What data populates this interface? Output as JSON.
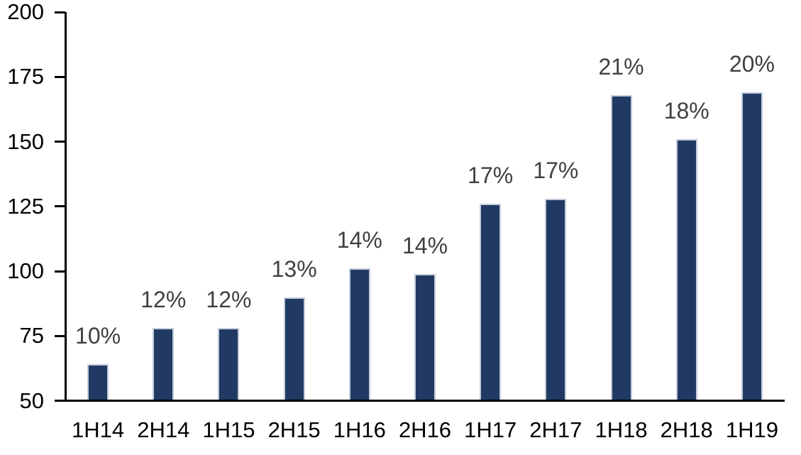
{
  "chart_data": {
    "type": "bar",
    "title": "",
    "xlabel": "",
    "ylabel": "",
    "categories": [
      "1H14",
      "2H14",
      "1H15",
      "2H15",
      "1H16",
      "2H16",
      "1H17",
      "2H17",
      "1H18",
      "2H18",
      "1H19"
    ],
    "values": [
      64,
      78,
      78,
      90,
      101,
      99,
      126,
      128,
      168,
      151,
      169
    ],
    "bar_labels": [
      "10%",
      "12%",
      "12%",
      "13%",
      "14%",
      "14%",
      "17%",
      "17%",
      "21%",
      "18%",
      "20%"
    ],
    "yticks": [
      50,
      75,
      100,
      125,
      150,
      175,
      200
    ],
    "ylim": [
      50,
      200
    ],
    "grid": false,
    "legend": null,
    "colors": {
      "bar_fill": "#203A63",
      "bar_border": "#C3CBD9",
      "data_label": "#404040",
      "axis": "#000000",
      "tick_label": "#000000",
      "background": "#FFFFFF"
    }
  }
}
